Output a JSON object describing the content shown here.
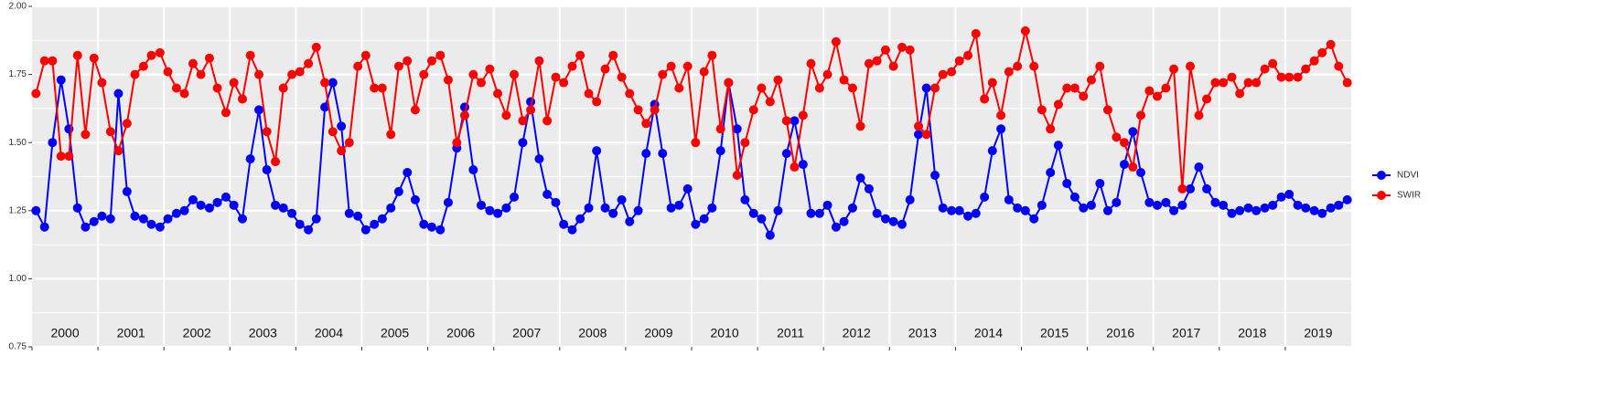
{
  "chart_data": {
    "type": "line",
    "x": [
      2000.06,
      2000.19,
      2000.31,
      2000.44,
      2000.56,
      2000.69,
      2000.81,
      2000.94,
      2001.06,
      2001.19,
      2001.31,
      2001.44,
      2001.56,
      2001.69,
      2001.81,
      2001.94,
      2002.06,
      2002.19,
      2002.31,
      2002.44,
      2002.56,
      2002.69,
      2002.81,
      2002.94,
      2003.06,
      2003.19,
      2003.31,
      2003.44,
      2003.56,
      2003.69,
      2003.81,
      2003.94,
      2004.06,
      2004.19,
      2004.31,
      2004.44,
      2004.56,
      2004.69,
      2004.81,
      2004.94,
      2005.06,
      2005.19,
      2005.31,
      2005.44,
      2005.56,
      2005.69,
      2005.81,
      2005.94,
      2006.06,
      2006.19,
      2006.31,
      2006.44,
      2006.56,
      2006.69,
      2006.81,
      2006.94,
      2007.06,
      2007.19,
      2007.31,
      2007.44,
      2007.56,
      2007.69,
      2007.81,
      2007.94,
      2008.06,
      2008.19,
      2008.31,
      2008.44,
      2008.56,
      2008.69,
      2008.81,
      2008.94,
      2009.06,
      2009.19,
      2009.31,
      2009.44,
      2009.56,
      2009.69,
      2009.81,
      2009.94,
      2010.06,
      2010.19,
      2010.31,
      2010.44,
      2010.56,
      2010.69,
      2010.81,
      2010.94,
      2011.06,
      2011.19,
      2011.31,
      2011.44,
      2011.56,
      2011.69,
      2011.81,
      2011.94,
      2012.06,
      2012.19,
      2012.31,
      2012.44,
      2012.56,
      2012.69,
      2012.81,
      2012.94,
      2013.06,
      2013.19,
      2013.31,
      2013.44,
      2013.56,
      2013.69,
      2013.81,
      2013.94,
      2014.06,
      2014.19,
      2014.31,
      2014.44,
      2014.56,
      2014.69,
      2014.81,
      2014.94,
      2015.06,
      2015.19,
      2015.31,
      2015.44,
      2015.56,
      2015.69,
      2015.81,
      2015.94,
      2016.06,
      2016.19,
      2016.31,
      2016.44,
      2016.56,
      2016.69,
      2016.81,
      2016.94,
      2017.06,
      2017.19,
      2017.31,
      2017.44,
      2017.56,
      2017.69,
      2017.81,
      2017.94,
      2018.06,
      2018.19,
      2018.31,
      2018.44,
      2018.56,
      2018.69,
      2018.81,
      2018.94,
      2019.06,
      2019.19,
      2019.31,
      2019.44,
      2019.56,
      2019.69,
      2019.81,
      2019.94
    ],
    "series": [
      {
        "name": "NDVI",
        "color": "#0000ff",
        "values": [
          1.25,
          1.19,
          1.5,
          1.73,
          1.55,
          1.26,
          1.19,
          1.21,
          1.23,
          1.22,
          1.68,
          1.32,
          1.23,
          1.22,
          1.2,
          1.19,
          1.22,
          1.24,
          1.25,
          1.29,
          1.27,
          1.26,
          1.28,
          1.3,
          1.27,
          1.22,
          1.44,
          1.62,
          1.4,
          1.27,
          1.26,
          1.24,
          1.2,
          1.18,
          1.22,
          1.63,
          1.72,
          1.56,
          1.24,
          1.23,
          1.18,
          1.2,
          1.22,
          1.26,
          1.32,
          1.39,
          1.29,
          1.2,
          1.19,
          1.18,
          1.28,
          1.48,
          1.63,
          1.4,
          1.27,
          1.25,
          1.24,
          1.26,
          1.3,
          1.5,
          1.65,
          1.44,
          1.31,
          1.28,
          1.2,
          1.18,
          1.22,
          1.26,
          1.47,
          1.26,
          1.24,
          1.29,
          1.21,
          1.25,
          1.46,
          1.64,
          1.46,
          1.26,
          1.27,
          1.33,
          1.2,
          1.22,
          1.26,
          1.47,
          1.72,
          1.55,
          1.29,
          1.24,
          1.22,
          1.16,
          1.25,
          1.46,
          1.58,
          1.42,
          1.24,
          1.24,
          1.27,
          1.19,
          1.21,
          1.26,
          1.37,
          1.33,
          1.24,
          1.22,
          1.21,
          1.2,
          1.29,
          1.53,
          1.7,
          1.38,
          1.26,
          1.25,
          1.25,
          1.23,
          1.24,
          1.3,
          1.47,
          1.55,
          1.29,
          1.26,
          1.25,
          1.22,
          1.27,
          1.39,
          1.49,
          1.35,
          1.3,
          1.26,
          1.27,
          1.35,
          1.25,
          1.28,
          1.42,
          1.54,
          1.39,
          1.28,
          1.27,
          1.28,
          1.25,
          1.27,
          1.33,
          1.41,
          1.33,
          1.28,
          1.27,
          1.24,
          1.25,
          1.26,
          1.25,
          1.26,
          1.27,
          1.3,
          1.31,
          1.27,
          1.26,
          1.25,
          1.24,
          1.26,
          1.27,
          1.29
        ]
      },
      {
        "name": "SWIR",
        "color": "#ff0000",
        "values": [
          1.68,
          1.8,
          1.8,
          1.45,
          1.45,
          1.82,
          1.53,
          1.81,
          1.72,
          1.54,
          1.47,
          1.57,
          1.75,
          1.78,
          1.82,
          1.83,
          1.76,
          1.7,
          1.68,
          1.79,
          1.75,
          1.81,
          1.7,
          1.61,
          1.72,
          1.66,
          1.82,
          1.75,
          1.54,
          1.43,
          1.7,
          1.75,
          1.76,
          1.79,
          1.85,
          1.72,
          1.54,
          1.47,
          1.5,
          1.78,
          1.82,
          1.7,
          1.7,
          1.53,
          1.78,
          1.8,
          1.62,
          1.75,
          1.8,
          1.82,
          1.73,
          1.5,
          1.6,
          1.75,
          1.72,
          1.77,
          1.68,
          1.6,
          1.75,
          1.58,
          1.62,
          1.8,
          1.58,
          1.74,
          1.72,
          1.78,
          1.82,
          1.68,
          1.65,
          1.77,
          1.82,
          1.74,
          1.68,
          1.62,
          1.57,
          1.62,
          1.75,
          1.78,
          1.7,
          1.78,
          1.5,
          1.76,
          1.82,
          1.55,
          1.72,
          1.38,
          1.5,
          1.62,
          1.7,
          1.65,
          1.73,
          1.58,
          1.41,
          1.6,
          1.79,
          1.7,
          1.75,
          1.87,
          1.73,
          1.7,
          1.56,
          1.79,
          1.8,
          1.84,
          1.78,
          1.85,
          1.84,
          1.56,
          1.53,
          1.7,
          1.75,
          1.76,
          1.8,
          1.82,
          1.9,
          1.66,
          1.72,
          1.6,
          1.76,
          1.78,
          1.91,
          1.78,
          1.62,
          1.55,
          1.64,
          1.7,
          1.7,
          1.67,
          1.73,
          1.78,
          1.62,
          1.52,
          1.5,
          1.41,
          1.6,
          1.69,
          1.67,
          1.7,
          1.77,
          1.33,
          1.78,
          1.6,
          1.66,
          1.72,
          1.72,
          1.74,
          1.68,
          1.72,
          1.72,
          1.77,
          1.79,
          1.74,
          1.74,
          1.74,
          1.77,
          1.8,
          1.83,
          1.86,
          1.78,
          1.72
        ]
      }
    ],
    "xlim": [
      2000,
      2020
    ],
    "xticks": [
      {
        "value": 2000.5,
        "label": "2000"
      },
      {
        "value": 2001.5,
        "label": "2001"
      },
      {
        "value": 2002.5,
        "label": "2002"
      },
      {
        "value": 2003.5,
        "label": "2003"
      },
      {
        "value": 2004.5,
        "label": "2004"
      },
      {
        "value": 2005.5,
        "label": "2005"
      },
      {
        "value": 2006.5,
        "label": "2006"
      },
      {
        "value": 2007.5,
        "label": "2007"
      },
      {
        "value": 2008.5,
        "label": "2008"
      },
      {
        "value": 2009.5,
        "label": "2009"
      },
      {
        "value": 2010.5,
        "label": "2010"
      },
      {
        "value": 2011.5,
        "label": "2011"
      },
      {
        "value": 2012.5,
        "label": "2012"
      },
      {
        "value": 2013.5,
        "label": "2013"
      },
      {
        "value": 2014.5,
        "label": "2014"
      },
      {
        "value": 2015.5,
        "label": "2015"
      },
      {
        "value": 2016.5,
        "label": "2016"
      },
      {
        "value": 2017.5,
        "label": "2017"
      },
      {
        "value": 2018.5,
        "label": "2018"
      },
      {
        "value": 2019.5,
        "label": "2019"
      }
    ],
    "ylim": [
      0.75,
      2.0
    ],
    "yticks": [
      0.75,
      {
        "value": 1.0,
        "label": "1.00"
      },
      1.25,
      {
        "value": 1.5,
        "label": "1.50"
      },
      1.75,
      {
        "value": 2.0,
        "label": "2.00"
      }
    ],
    "grid": true,
    "legend": "right"
  }
}
